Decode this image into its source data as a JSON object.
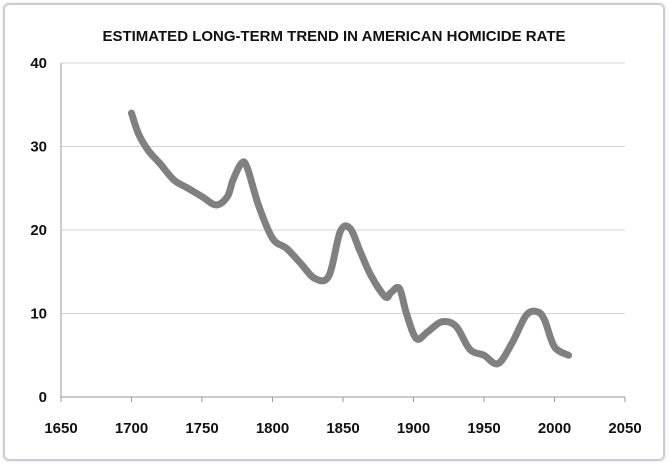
{
  "chart_data": {
    "type": "line",
    "title": "ESTIMATED LONG-TERM TREND IN AMERICAN HOMICIDE RATE",
    "xlabel": "",
    "ylabel": "",
    "xlim": [
      1650,
      2050
    ],
    "ylim": [
      0,
      40
    ],
    "x_ticks": [
      "1650",
      "1700",
      "1750",
      "1800",
      "1850",
      "1900",
      "1950",
      "2000",
      "2050"
    ],
    "y_ticks": [
      "0",
      "10",
      "20",
      "30",
      "40"
    ],
    "grid": "horizontal",
    "legend": "none",
    "line_color": "#808080",
    "series": [
      {
        "x": [
          1700,
          1705,
          1712,
          1720,
          1730,
          1740,
          1750,
          1760,
          1768,
          1772,
          1778,
          1782,
          1790,
          1800,
          1810,
          1820,
          1830,
          1840,
          1848,
          1855,
          1862,
          1870,
          1880,
          1884,
          1890,
          1895,
          1902,
          1910,
          1920,
          1930,
          1940,
          1950,
          1960,
          1970,
          1980,
          1988,
          1993,
          2000,
          2010
        ],
        "y": [
          34,
          31.5,
          29.5,
          28,
          26,
          25,
          24,
          23,
          24,
          26,
          28,
          27.5,
          23,
          19,
          17.8,
          16,
          14.2,
          14.5,
          19.8,
          20.2,
          17.5,
          14.5,
          12,
          12.5,
          13,
          10,
          7,
          7.8,
          9,
          8.5,
          5.7,
          5,
          4,
          6.5,
          9.8,
          10.2,
          9.2,
          6,
          5
        ]
      }
    ]
  }
}
